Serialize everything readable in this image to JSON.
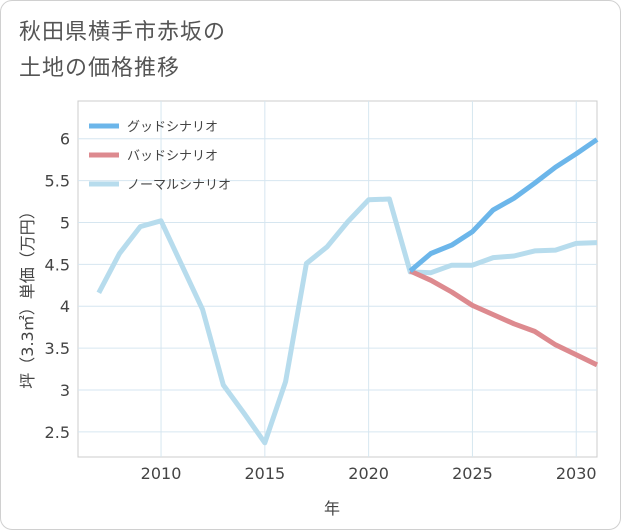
{
  "page": {
    "title_line1": "秋田県横手市赤坂の",
    "title_line2": "土地の価格推移"
  },
  "chart_data": {
    "type": "line",
    "title": "秋田県横手市赤坂の土地の価格推移",
    "xlabel": "年",
    "ylabel": "坪（3.3㎡）単価（万円）",
    "xlim": [
      2006,
      2031
    ],
    "ylim": [
      2.2,
      6.45
    ],
    "xticks": [
      2010,
      2015,
      2020,
      2025,
      2030
    ],
    "yticks": [
      2.5,
      3,
      3.5,
      4,
      4.5,
      5,
      5.5,
      6
    ],
    "grid": true,
    "legend_position": "top-left",
    "series": [
      {
        "name": "グッドシナリオ",
        "color": "#6cb6ea",
        "x": [
          2022,
          2023,
          2024,
          2025,
          2026,
          2027,
          2028,
          2029,
          2030,
          2031
        ],
        "y": [
          4.42,
          4.63,
          4.73,
          4.89,
          5.15,
          5.29,
          5.47,
          5.66,
          5.82,
          5.99
        ]
      },
      {
        "name": "バッドシナリオ",
        "color": "#dd8a8f",
        "x": [
          2022,
          2023,
          2024,
          2025,
          2026,
          2027,
          2028,
          2029,
          2030,
          2031
        ],
        "y": [
          4.42,
          4.31,
          4.17,
          4.01,
          3.9,
          3.79,
          3.7,
          3.54,
          3.42,
          3.3
        ]
      },
      {
        "name": "ノーマルシナリオ",
        "color": "#b7dced",
        "x": [
          2007,
          2008,
          2009,
          2010,
          2011,
          2012,
          2013,
          2014,
          2015,
          2016,
          2017,
          2018,
          2019,
          2020,
          2021,
          2022,
          2023,
          2024,
          2025,
          2026,
          2027,
          2028,
          2029,
          2030,
          2031
        ],
        "y": [
          4.16,
          4.63,
          4.95,
          5.02,
          4.49,
          3.96,
          3.06,
          2.72,
          2.37,
          3.1,
          4.51,
          4.71,
          5.01,
          5.27,
          5.28,
          4.41,
          4.4,
          4.49,
          4.49,
          4.58,
          4.6,
          4.66,
          4.67,
          4.75,
          4.76
        ]
      }
    ]
  }
}
